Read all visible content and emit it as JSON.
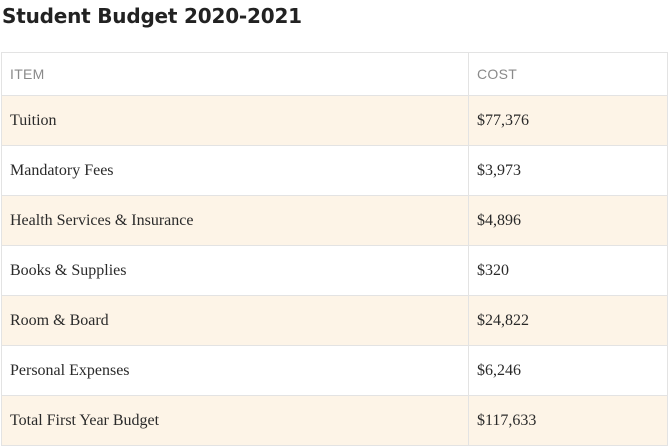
{
  "title": "Student Budget 2020-2021",
  "table": {
    "headers": {
      "item": "ITEM",
      "cost": "COST"
    },
    "rows": [
      {
        "item": "Tuition",
        "cost": "$77,376"
      },
      {
        "item": "Mandatory Fees",
        "cost": "$3,973"
      },
      {
        "item": "Health Services & Insurance",
        "cost": "$4,896"
      },
      {
        "item": "Books & Supplies",
        "cost": "$320"
      },
      {
        "item": "Room & Board",
        "cost": "$24,822"
      },
      {
        "item": "Personal Expenses",
        "cost": "$6,246"
      },
      {
        "item": "Total First Year Budget",
        "cost": "$117,633"
      }
    ]
  },
  "colors": {
    "shaded_row": "#fdf4e7",
    "border": "#e3e3e3",
    "header_text": "#8a8a8a",
    "body_text": "#2a2a2a"
  }
}
